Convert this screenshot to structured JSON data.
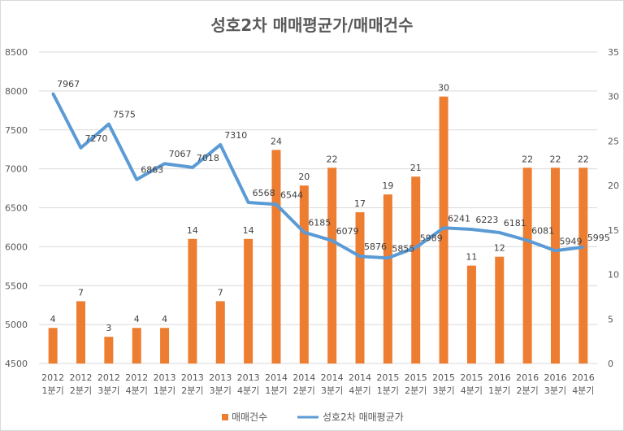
{
  "chart_data": {
    "type": "bar+line",
    "title": "성호2차 매매평균가/매매건수",
    "categories": [
      [
        "2012",
        "1분기"
      ],
      [
        "2012",
        "2분기"
      ],
      [
        "2012",
        "3분기"
      ],
      [
        "2012",
        "4분기"
      ],
      [
        "2013",
        "1분기"
      ],
      [
        "2013",
        "2분기"
      ],
      [
        "2013",
        "3분기"
      ],
      [
        "2013",
        "4분기"
      ],
      [
        "2014",
        "1분기"
      ],
      [
        "2014",
        "2분기"
      ],
      [
        "2014",
        "3분기"
      ],
      [
        "2014",
        "4분기"
      ],
      [
        "2015",
        "1분기"
      ],
      [
        "2015",
        "2분기"
      ],
      [
        "2015",
        "3분기"
      ],
      [
        "2015",
        "4분기"
      ],
      [
        "2016",
        "1분기"
      ],
      [
        "2016",
        "2분기"
      ],
      [
        "2016",
        "3분기"
      ],
      [
        "2016",
        "4분기"
      ]
    ],
    "series": [
      {
        "name": "매매건수",
        "type": "bar",
        "axis": "right",
        "color": "#ED7D31",
        "values": [
          4,
          7,
          3,
          4,
          4,
          14,
          7,
          14,
          24,
          20,
          22,
          17,
          19,
          21,
          30,
          11,
          12,
          22,
          22,
          22
        ]
      },
      {
        "name": "성호2차 매매평균가",
        "type": "line",
        "axis": "left",
        "color": "#5B9BD5",
        "values": [
          7967,
          7270,
          7575,
          6863,
          7067,
          7018,
          7310,
          6568,
          6544,
          6185,
          6079,
          5876,
          5855,
          5989,
          6241,
          6223,
          6181,
          6081,
          5949,
          5995
        ]
      }
    ],
    "y_left": {
      "min": 4500,
      "max": 8500,
      "step": 500,
      "ticks": [
        "4500",
        "5000",
        "5500",
        "6000",
        "6500",
        "7000",
        "7500",
        "8000",
        "8500"
      ]
    },
    "y_right": {
      "min": 0,
      "max": 35,
      "step": 5,
      "ticks": [
        "0",
        "5",
        "10",
        "15",
        "20",
        "25",
        "30",
        "35"
      ]
    },
    "grid": true,
    "legend": "bottom-center"
  }
}
